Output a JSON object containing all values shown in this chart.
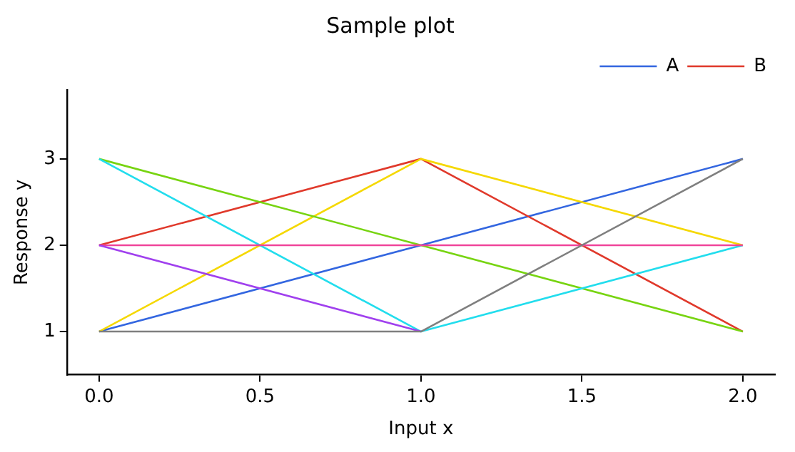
{
  "chart_data": {
    "type": "line",
    "title": "Sample plot",
    "xlabel": "Input x",
    "ylabel": "Response y",
    "x": [
      0,
      1,
      2
    ],
    "series": [
      {
        "name": "A",
        "color": "#3366e0",
        "values": [
          1,
          2,
          3
        ]
      },
      {
        "name": "B",
        "color": "#e0392b",
        "values": [
          2,
          3,
          1
        ]
      },
      {
        "color": "#f5d800",
        "values": [
          1,
          3,
          2
        ]
      },
      {
        "color": "#77d411",
        "values": [
          3,
          2,
          1
        ]
      },
      {
        "color": "#22dded",
        "values": [
          3,
          1,
          2
        ]
      },
      {
        "color": "#f0449a",
        "values": [
          2,
          2,
          2
        ]
      },
      {
        "color": "#a040ee",
        "values": [
          2,
          1,
          null
        ]
      },
      {
        "color": "#7f7f7f",
        "values": [
          1,
          1,
          3
        ]
      }
    ],
    "xlim": [
      -0.1,
      2.1
    ],
    "xticks": [
      {
        "value": 0,
        "label": "0.0"
      },
      {
        "value": 0.5,
        "label": "0.5"
      },
      {
        "value": 1,
        "label": "1.0"
      },
      {
        "value": 1.5,
        "label": "1.5"
      },
      {
        "value": 2,
        "label": "2.0"
      }
    ],
    "ylim": [
      0.5,
      3.8
    ],
    "yticks": [
      1,
      2,
      3
    ],
    "grid": false,
    "legend": "top right",
    "marker": "none",
    "line_style": "solid"
  }
}
